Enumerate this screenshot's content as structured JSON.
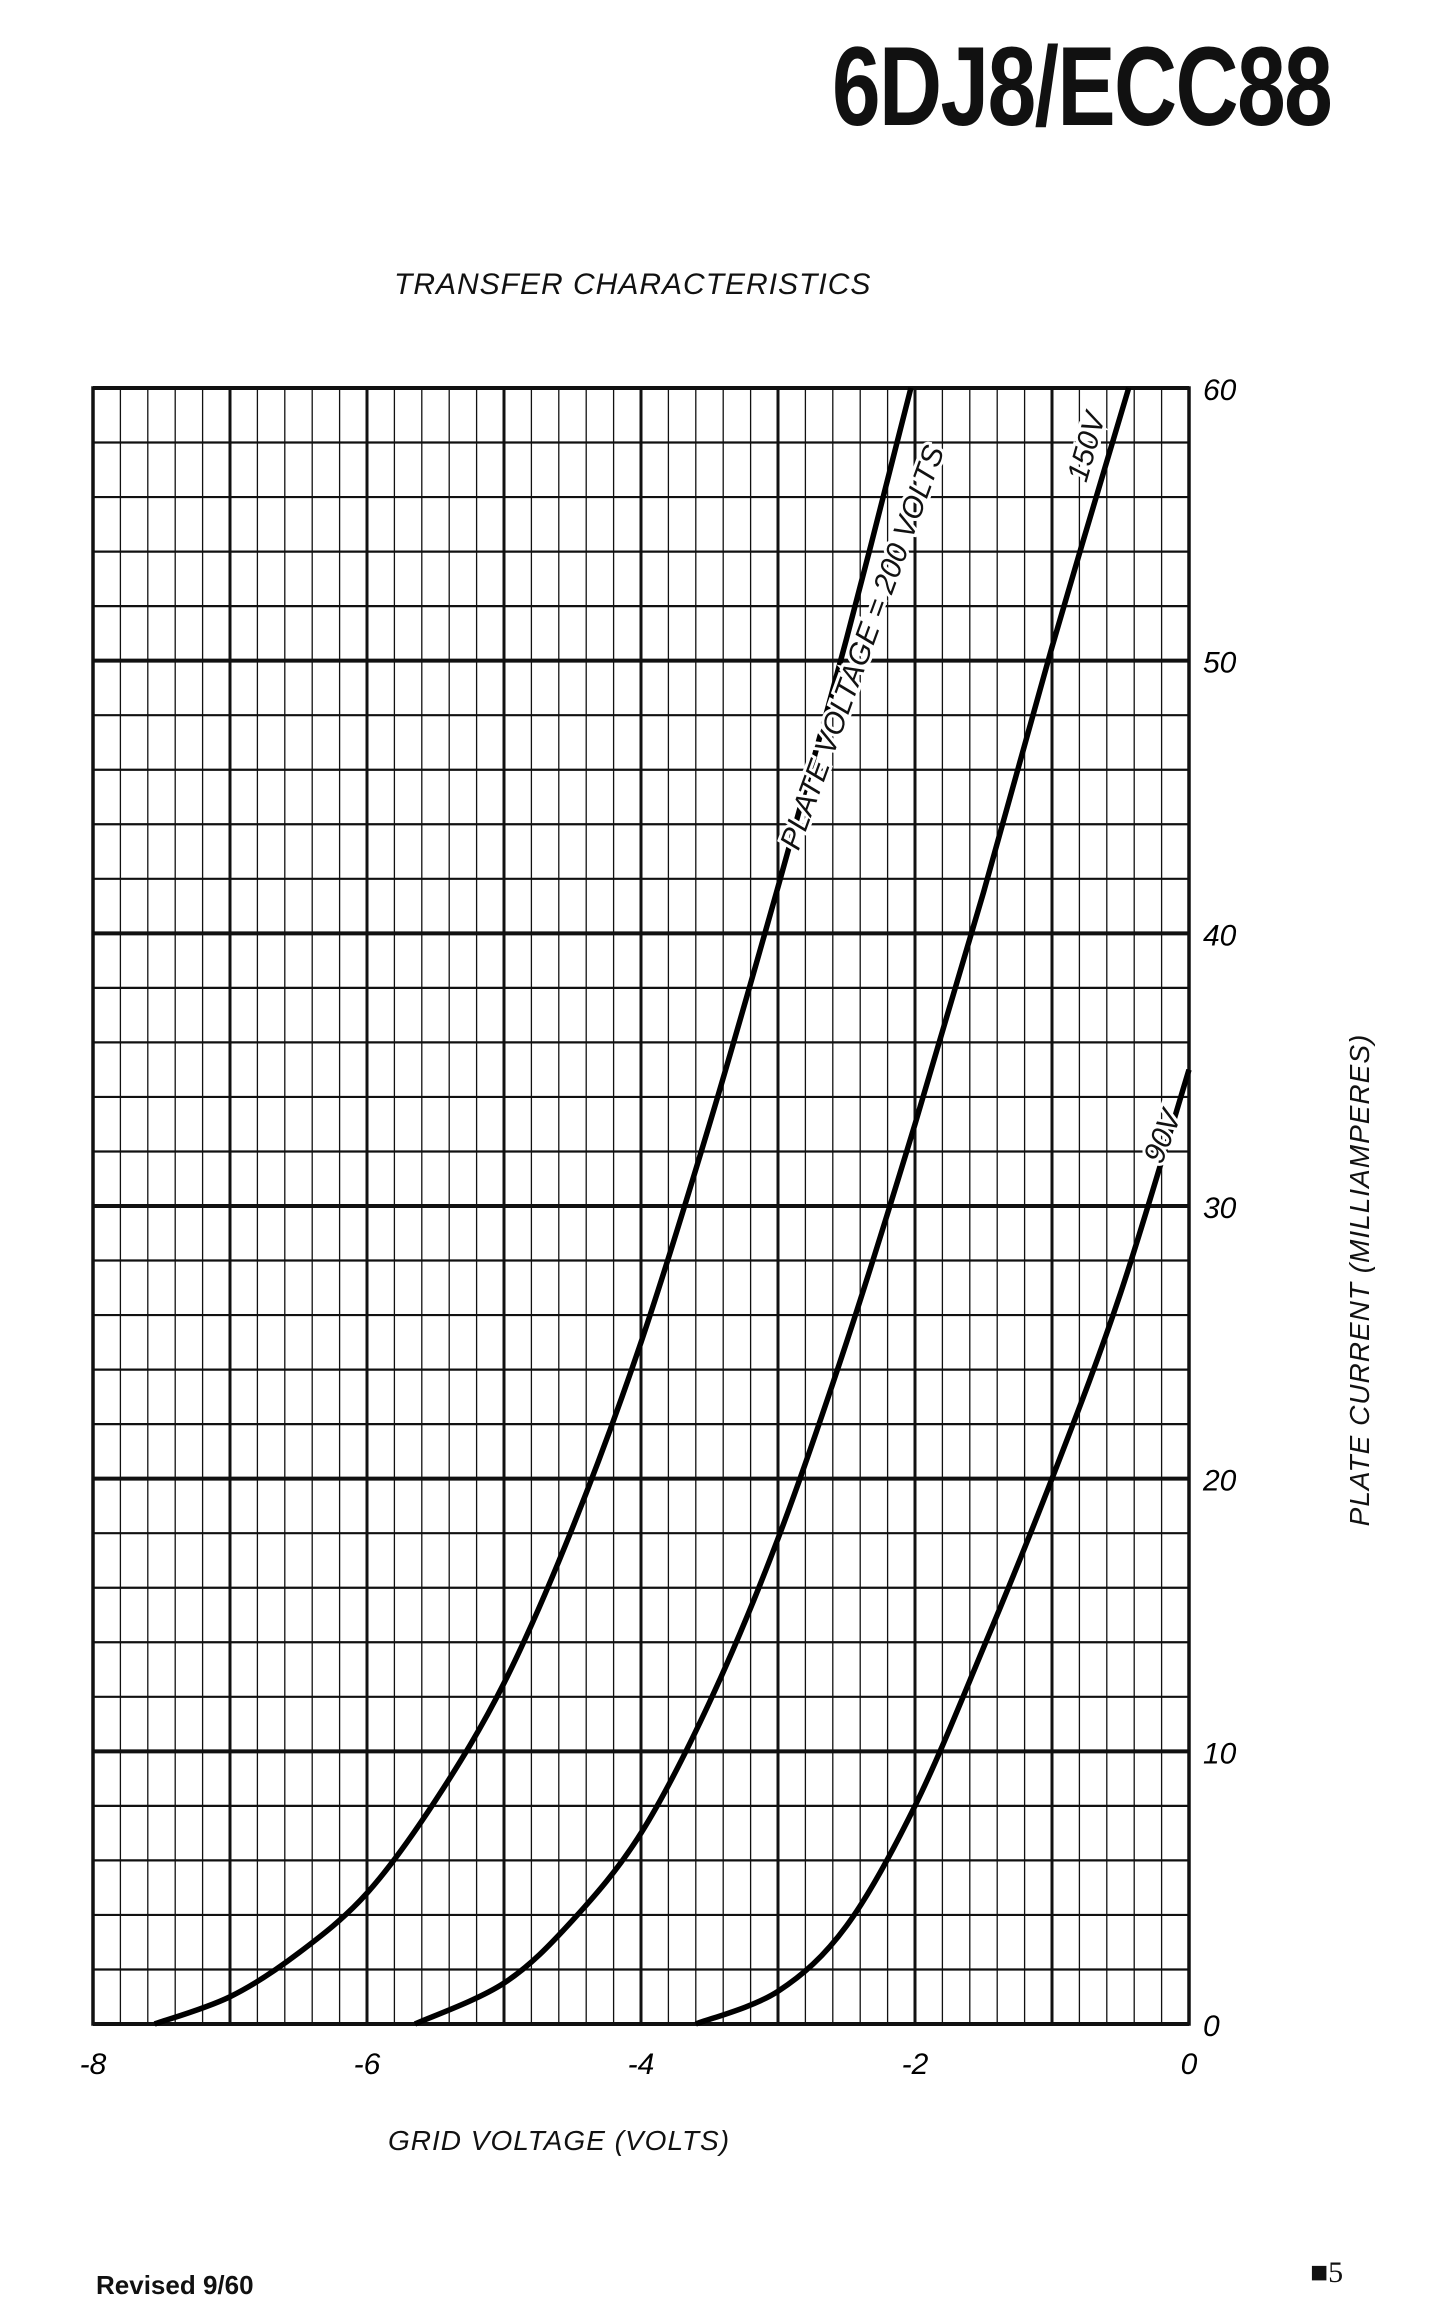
{
  "header": {
    "title": "6DJ8/ECC88"
  },
  "footer": {
    "revised": "Revised 9/60",
    "page": "■5"
  },
  "chart_data": {
    "type": "line",
    "title": "TRANSFER CHARACTERISTICS",
    "xlabel": "GRID VOLTAGE (VOLTS)",
    "ylabel": "PLATE CURRENT (MILLIAMPERES)",
    "xlim": [
      -8,
      0
    ],
    "ylim": [
      0,
      60
    ],
    "x_ticks": [
      -8,
      -6,
      -4,
      -2,
      0
    ],
    "x_tick_labels": [
      "-8",
      "-6",
      "-4",
      "-2",
      "0"
    ],
    "y_ticks": [
      0,
      10,
      20,
      30,
      40,
      50,
      60
    ],
    "y_tick_labels": [
      "0",
      "10",
      "20",
      "30",
      "40",
      "50",
      "60"
    ],
    "grid": true,
    "y_axis_side": "right",
    "series": [
      {
        "name": "PLATE VOLTAGE = 200 VOLTS",
        "x": [
          -7.55,
          -7.0,
          -6.5,
          -6.0,
          -5.5,
          -5.0,
          -4.5,
          -4.0,
          -3.5,
          -3.0,
          -2.5,
          -2.03
        ],
        "y": [
          0,
          1,
          2.6,
          4.8,
          8.2,
          12.5,
          18.2,
          25,
          33,
          41.7,
          50.8,
          60
        ]
      },
      {
        "name": "150V",
        "x": [
          -5.65,
          -5.0,
          -4.5,
          -4.0,
          -3.5,
          -3.0,
          -2.5,
          -2.0,
          -1.5,
          -1.0,
          -0.44
        ],
        "y": [
          0,
          1.5,
          3.8,
          7,
          11.8,
          17.8,
          25,
          33,
          41.5,
          50.5,
          60
        ]
      },
      {
        "name": "90V",
        "x": [
          -3.6,
          -3.0,
          -2.5,
          -2.0,
          -1.5,
          -1.0,
          -0.5,
          0
        ],
        "y": [
          0,
          1.2,
          3.6,
          8,
          13.8,
          20,
          26.8,
          35
        ]
      }
    ]
  }
}
